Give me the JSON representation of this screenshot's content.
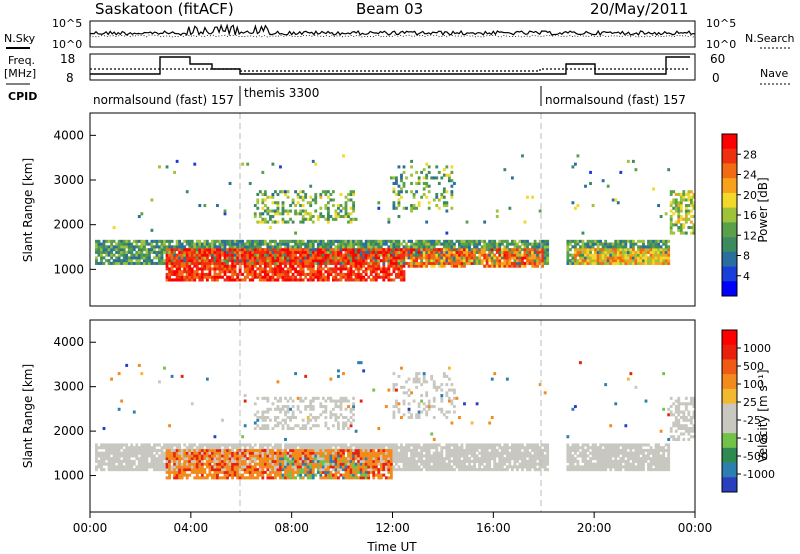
{
  "header": {
    "station": "Saskatoon (fitACF)",
    "beam": "Beam 03",
    "date": "20/May/2011"
  },
  "left_labels": {
    "nsky": "N.Sky",
    "freq_line1": "Freq.",
    "freq_line2": "[MHz]",
    "cpid": "CPID"
  },
  "right_labels": {
    "nsearch": "N.Search",
    "nave": "Nave"
  },
  "noise_axis": {
    "top": "10^5",
    "bottom": "10^0"
  },
  "freq_axis": {
    "ticks": [
      "18",
      "8"
    ]
  },
  "nave_axis": {
    "ticks": [
      "60",
      "0"
    ]
  },
  "cpid_segments": [
    {
      "label": "normalsound (fast) 157",
      "start_hour": 0.0,
      "end_hour": 6.0
    },
    {
      "label": "themis 3300",
      "start_hour": 6.0,
      "end_hour": 18.0
    },
    {
      "label": "normalsound (fast) 157",
      "start_hour": 18.0,
      "end_hour": 24.0
    }
  ],
  "x_axis": {
    "label": "Time UT",
    "ticks": [
      "00:00",
      "04:00",
      "08:00",
      "12:00",
      "16:00",
      "20:00",
      "00:00"
    ]
  },
  "power_colorbar": {
    "label": "Power [dB]",
    "ticks": [
      "28",
      "24",
      "20",
      "16",
      "12",
      "8",
      "4"
    ],
    "colors": [
      "#0000ff",
      "#1a3fd8",
      "#2a6e9e",
      "#3c8a5e",
      "#5aa04a",
      "#9ec23a",
      "#f2d82a",
      "#f7a21a",
      "#f26a12",
      "#ee3010",
      "#ff0000"
    ]
  },
  "velocity_colorbar": {
    "label": "Velocity [m s⁻¹]",
    "ticks": [
      "1000",
      "500",
      "100",
      "25",
      "-25",
      "-100",
      "-500",
      "-1000"
    ],
    "colors": [
      "#2a3fbf",
      "#2a7fae",
      "#2e8a50",
      "#72c24a",
      "#c8c8c0",
      "#c8c8c0",
      "#f2b830",
      "#f38a1c",
      "#ef5a14",
      "#e8200c",
      "#ff0000"
    ]
  },
  "chart_data": [
    {
      "type": "heatmap",
      "title": "",
      "xlabel": "",
      "ylabel": "Slant Range [km]",
      "xlim": [
        0,
        24
      ],
      "ylim": [
        180,
        4500
      ],
      "yticks": [
        1000,
        2000,
        3000,
        4000
      ],
      "colorbar_label": "Power [dB]",
      "value_range": [
        0,
        30
      ],
      "features": [
        {
          "name": "main echo band",
          "x": [
            0.2,
            18.0
          ],
          "y_center_km": 1350,
          "typical_value": 14
        },
        {
          "name": "strong echoes",
          "x": [
            3.0,
            12.0
          ],
          "y_center_km": 1100,
          "typical_value": 28
        },
        {
          "name": "evening band",
          "x": [
            19.0,
            23.0
          ],
          "y_center_km": 1300,
          "typical_value": 16
        }
      ]
    },
    {
      "type": "heatmap",
      "title": "",
      "xlabel": "Time UT",
      "ylabel": "Slant Range [km]",
      "xlim": [
        0,
        24
      ],
      "ylim": [
        180,
        4500
      ],
      "yticks": [
        1000,
        2000,
        3000,
        4000
      ],
      "colorbar_label": "Velocity [m s⁻¹]",
      "value_range": [
        -1000,
        1000
      ],
      "features": [
        {
          "name": "near-zero band",
          "x": [
            0.2,
            23.0
          ],
          "y_center_km": 1350,
          "typical_value": 0
        },
        {
          "name": "negative flow",
          "x": [
            3.0,
            12.0
          ],
          "y_center_km": 1300,
          "typical_value": -300
        },
        {
          "name": "positive patch",
          "x": [
            7.5,
            11.0
          ],
          "y_center_km": 1200,
          "typical_value": 80
        }
      ]
    }
  ]
}
